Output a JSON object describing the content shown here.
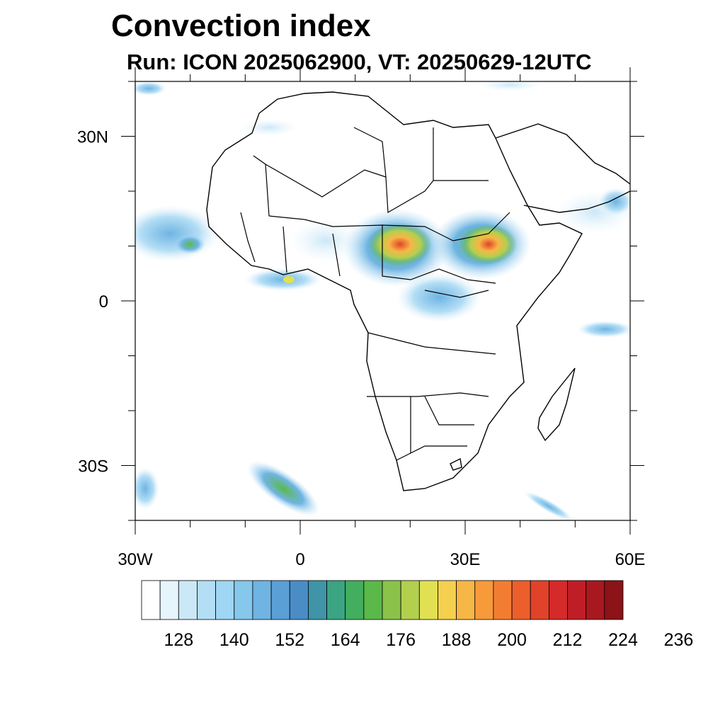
{
  "header": {
    "title": "Convection index",
    "subtitle": "Run: ICON 2025062900,  VT: 20250629-12UTC"
  },
  "map": {
    "extent": {
      "lon_min": -30,
      "lon_max": 60,
      "lat_min": -40,
      "lat_max": 40
    },
    "lat_ticks": [
      {
        "value": 30,
        "label": "30N"
      },
      {
        "value": 0,
        "label": "0"
      },
      {
        "value": -30,
        "label": "30S"
      }
    ],
    "lon_ticks": [
      {
        "value": -30,
        "label": "30W"
      },
      {
        "value": 0,
        "label": "0"
      },
      {
        "value": 30,
        "label": "30E"
      },
      {
        "value": 60,
        "label": "60E"
      }
    ]
  },
  "colorbar": {
    "colors": [
      "#ffffff",
      "#e6f4fc",
      "#cbe8f7",
      "#b4def5",
      "#9fd6f3",
      "#86c7ec",
      "#6fb4e3",
      "#5a9fd6",
      "#4a8cc6",
      "#3f94a8",
      "#3aa483",
      "#42ae5e",
      "#5bb94a",
      "#8ac24a",
      "#b3cf4e",
      "#e0e052",
      "#f5d04e",
      "#f7b746",
      "#f69a3a",
      "#f27d32",
      "#ec5e2c",
      "#e0432a",
      "#d42a2a",
      "#c01e27",
      "#a8181f",
      "#8c1317"
    ],
    "labels": [
      "128",
      "140",
      "152",
      "164",
      "176",
      "188",
      "200",
      "212",
      "224",
      "236"
    ]
  }
}
